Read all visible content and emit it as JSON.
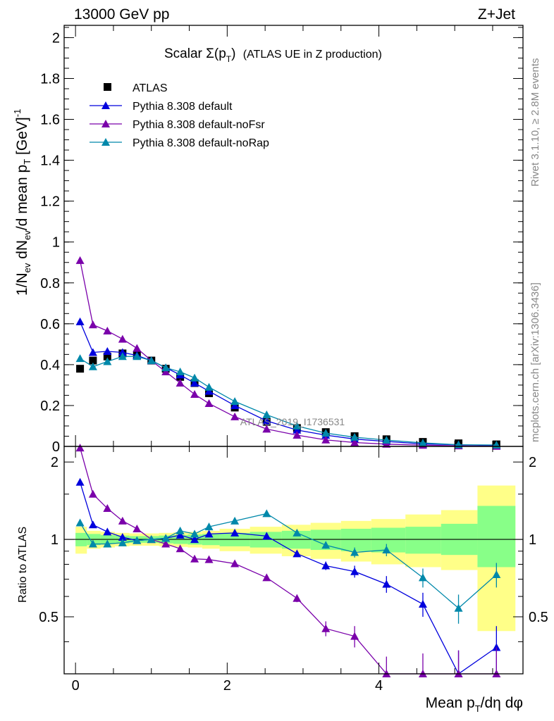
{
  "header": {
    "energy_label": "13000 GeV pp",
    "process_label": "Z+Jet"
  },
  "side_text": {
    "rivet": "Rivet 3.1.10, ≥ 2.8M events",
    "mcplots": "mcplots.cern.ch [arXiv:1306.3436]"
  },
  "watermark": "ATLAS_2019_I1736531",
  "chart_data": [
    {
      "panel": "main",
      "type": "scatter",
      "title_main": "Scalar Σ(p",
      "title_sub": "T",
      "title_close": ")",
      "title_rest": "(ATLAS UE in Z production)",
      "ylabel": "1/N_ev dN_ev/d mean p_T [GeV]^-1",
      "xlim": [
        -0.15,
        5.9
      ],
      "ylim": [
        0,
        2.06
      ],
      "y_ticks": [
        "0",
        "0.2",
        "0.4",
        "0.6",
        "0.8",
        "1",
        "1.2",
        "1.4",
        "1.6",
        "1.8",
        "2"
      ],
      "legend_position": "top-left",
      "x": [
        0.06,
        0.23,
        0.42,
        0.62,
        0.81,
        1.0,
        1.19,
        1.38,
        1.57,
        1.76,
        2.1,
        2.52,
        2.92,
        3.3,
        3.68,
        4.1,
        4.58,
        5.05,
        5.55
      ],
      "series": [
        {
          "name": "ATLAS",
          "color": "#000000",
          "marker": "square",
          "values": [
            0.38,
            0.42,
            0.44,
            0.455,
            0.445,
            0.42,
            0.38,
            0.34,
            0.31,
            0.26,
            0.19,
            0.12,
            0.09,
            0.07,
            0.05,
            0.035,
            0.022,
            0.015,
            0.01
          ]
        },
        {
          "name": "Pythia 8.308 default",
          "color": "#0000dd",
          "marker": "triangle",
          "values": [
            0.61,
            0.46,
            0.465,
            0.46,
            0.445,
            0.42,
            0.385,
            0.35,
            0.31,
            0.27,
            0.2,
            0.125,
            0.08,
            0.055,
            0.036,
            0.024,
            0.012,
            0.008,
            0.004
          ]
        },
        {
          "name": "Pythia 8.308 default-noFsr",
          "color": "#7a00aa",
          "marker": "triangle",
          "values": [
            0.91,
            0.595,
            0.565,
            0.525,
            0.48,
            0.42,
            0.365,
            0.31,
            0.255,
            0.21,
            0.145,
            0.085,
            0.055,
            0.032,
            0.019,
            0.011,
            0.006,
            0.003,
            0.001
          ]
        },
        {
          "name": "Pythia 8.308 default-noRap",
          "color": "#0088aa",
          "marker": "triangle",
          "values": [
            0.43,
            0.39,
            0.415,
            0.44,
            0.44,
            0.42,
            0.385,
            0.365,
            0.335,
            0.29,
            0.22,
            0.155,
            0.1,
            0.065,
            0.045,
            0.031,
            0.017,
            0.008,
            0.007
          ]
        }
      ]
    },
    {
      "panel": "ratio",
      "type": "line",
      "xlabel": "Mean p_T/dη dφ",
      "ylabel": "Ratio to ATLAS",
      "xlim": [
        -0.15,
        5.9
      ],
      "ylim": [
        0.3,
        2.3
      ],
      "y_tick_labels": [
        0.5,
        1,
        2
      ],
      "x_tick_labels": [
        0,
        2,
        4
      ],
      "bins": [
        [
          0.0,
          0.15
        ],
        [
          0.15,
          0.33
        ],
        [
          0.33,
          0.52
        ],
        [
          0.52,
          0.71
        ],
        [
          0.71,
          0.9
        ],
        [
          0.9,
          1.1
        ],
        [
          1.1,
          1.29
        ],
        [
          1.29,
          1.48
        ],
        [
          1.48,
          1.67
        ],
        [
          1.67,
          1.9
        ],
        [
          1.9,
          2.3
        ],
        [
          2.3,
          2.72
        ],
        [
          2.72,
          3.1
        ],
        [
          3.1,
          3.5
        ],
        [
          3.5,
          3.9
        ],
        [
          3.9,
          4.35
        ],
        [
          4.35,
          4.82
        ],
        [
          4.82,
          5.3
        ],
        [
          5.3,
          5.8
        ]
      ],
      "band_green": [
        [
          0.94,
          1.06
        ],
        [
          0.95,
          1.05
        ],
        [
          0.96,
          1.04
        ],
        [
          0.965,
          1.035
        ],
        [
          0.97,
          1.03
        ],
        [
          0.97,
          1.03
        ],
        [
          0.965,
          1.035
        ],
        [
          0.96,
          1.04
        ],
        [
          0.955,
          1.045
        ],
        [
          0.95,
          1.05
        ],
        [
          0.94,
          1.06
        ],
        [
          0.93,
          1.07
        ],
        [
          0.92,
          1.08
        ],
        [
          0.91,
          1.09
        ],
        [
          0.9,
          1.1
        ],
        [
          0.89,
          1.11
        ],
        [
          0.88,
          1.12
        ],
        [
          0.87,
          1.15
        ],
        [
          0.78,
          1.35
        ]
      ],
      "band_yellow": [
        [
          0.88,
          1.12
        ],
        [
          0.92,
          1.08
        ],
        [
          0.93,
          1.07
        ],
        [
          0.94,
          1.06
        ],
        [
          0.945,
          1.055
        ],
        [
          0.945,
          1.055
        ],
        [
          0.94,
          1.06
        ],
        [
          0.935,
          1.065
        ],
        [
          0.93,
          1.07
        ],
        [
          0.92,
          1.08
        ],
        [
          0.9,
          1.1
        ],
        [
          0.88,
          1.12
        ],
        [
          0.86,
          1.14
        ],
        [
          0.84,
          1.16
        ],
        [
          0.82,
          1.18
        ],
        [
          0.8,
          1.2
        ],
        [
          0.78,
          1.25
        ],
        [
          0.76,
          1.3
        ],
        [
          0.44,
          1.62
        ]
      ],
      "x": [
        0.06,
        0.23,
        0.42,
        0.62,
        0.81,
        1.0,
        1.19,
        1.38,
        1.57,
        1.76,
        2.1,
        2.52,
        2.92,
        3.3,
        3.68,
        4.1,
        4.58,
        5.05,
        5.55
      ],
      "series": [
        {
          "name": "Pythia 8.308 default",
          "color": "#0000dd",
          "values": [
            1.67,
            1.14,
            1.07,
            1.02,
            0.99,
            1.0,
            1.01,
            1.04,
            1.0,
            1.05,
            1.06,
            1.03,
            0.88,
            0.79,
            0.75,
            0.67,
            0.56,
            0.3,
            0.38
          ]
        },
        {
          "name": "Pythia 8.308 default-noFsr",
          "color": "#7a00aa",
          "values": [
            2.27,
            1.5,
            1.32,
            1.18,
            1.1,
            1.0,
            0.96,
            0.92,
            0.84,
            0.835,
            0.805,
            0.71,
            0.59,
            0.45,
            0.42,
            0.3,
            0.3,
            0.3,
            0.3
          ]
        },
        {
          "name": "Pythia 8.308 default-noRap",
          "color": "#0088aa",
          "values": [
            1.16,
            0.96,
            0.96,
            0.97,
            0.99,
            1.0,
            1.01,
            1.08,
            1.05,
            1.12,
            1.18,
            1.26,
            1.06,
            0.95,
            0.89,
            0.91,
            0.71,
            0.54,
            0.73
          ]
        }
      ]
    }
  ]
}
